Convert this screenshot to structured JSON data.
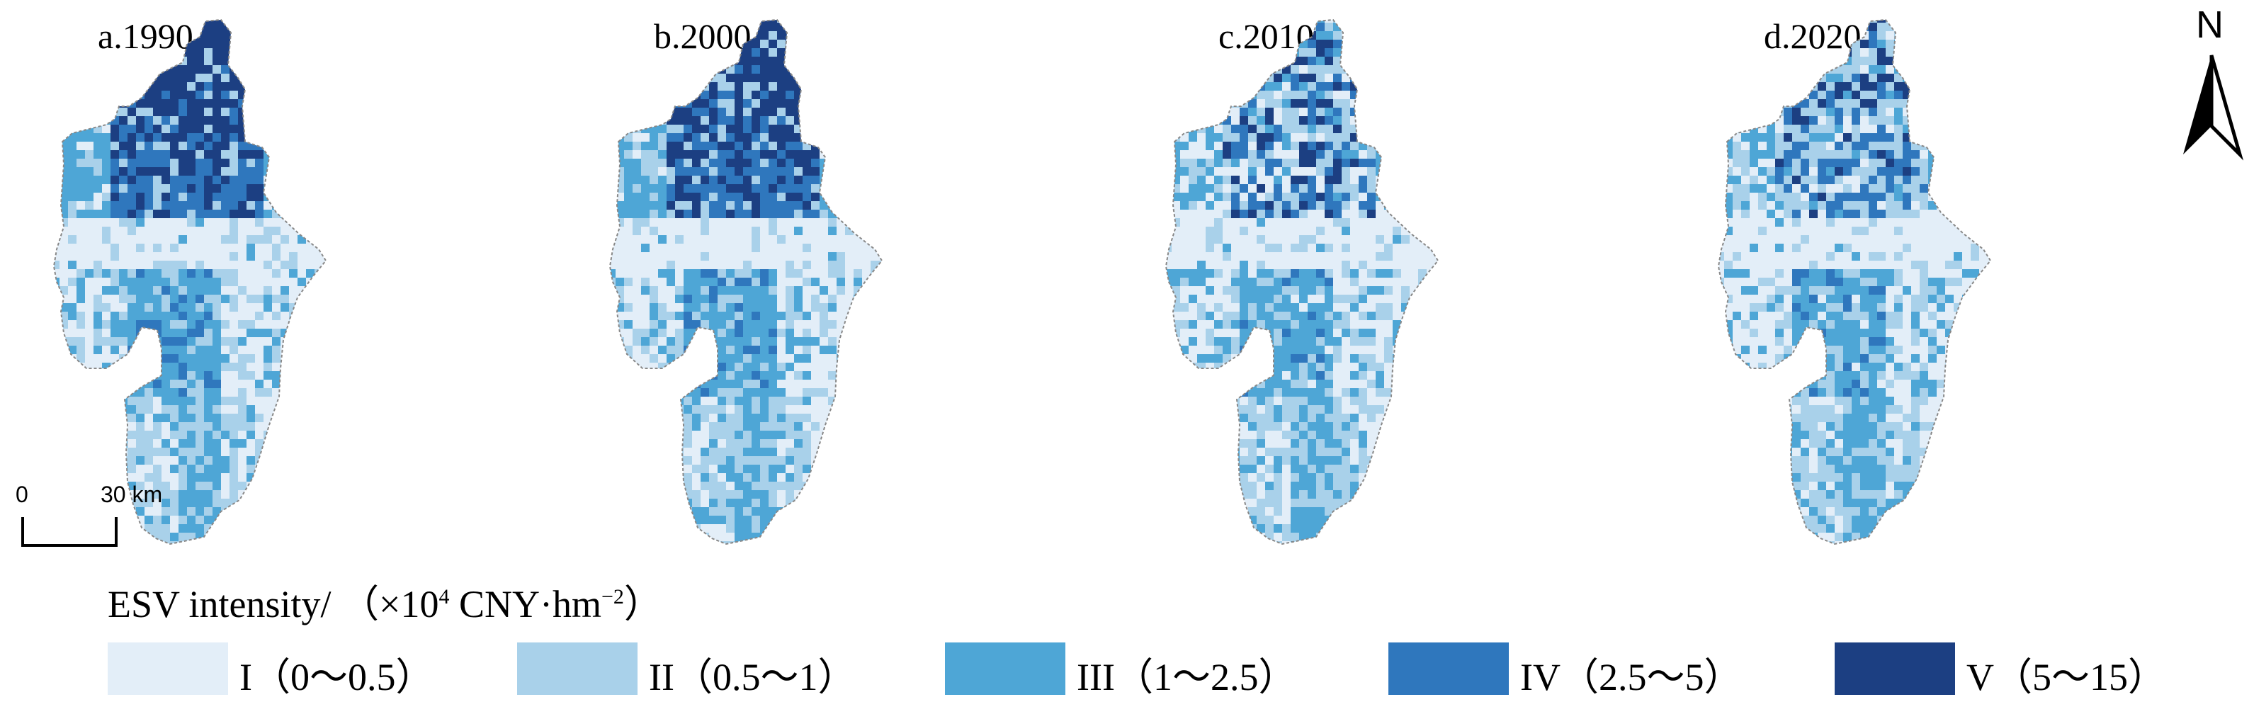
{
  "panels": [
    {
      "label": "a.1990",
      "intensity": 1.0
    },
    {
      "label": "b.2000",
      "intensity": 0.92
    },
    {
      "label": "c.2010",
      "intensity": 0.55
    },
    {
      "label": "d.2020",
      "intensity": 0.45
    }
  ],
  "north_arrow": {
    "letter": "N"
  },
  "scale_bar": {
    "start": "0",
    "end": "30 km"
  },
  "legend": {
    "title_prefix": "ESV intensity/ （×10",
    "title_sup": "4",
    "title_mid": " CNY·hm",
    "title_sup2": "−2",
    "title_suffix": "）",
    "classes": [
      {
        "label": "I（0～0.5）",
        "color": "#e3eef8"
      },
      {
        "label": "II（0.5～1）",
        "color": "#a9d1ea"
      },
      {
        "label": "III（1～2.5）",
        "color": "#4ea6d6"
      },
      {
        "label": "IV（2.5～5）",
        "color": "#2f77bd"
      },
      {
        "label": "V（5～15）",
        "color": "#1c3f82"
      }
    ]
  }
}
